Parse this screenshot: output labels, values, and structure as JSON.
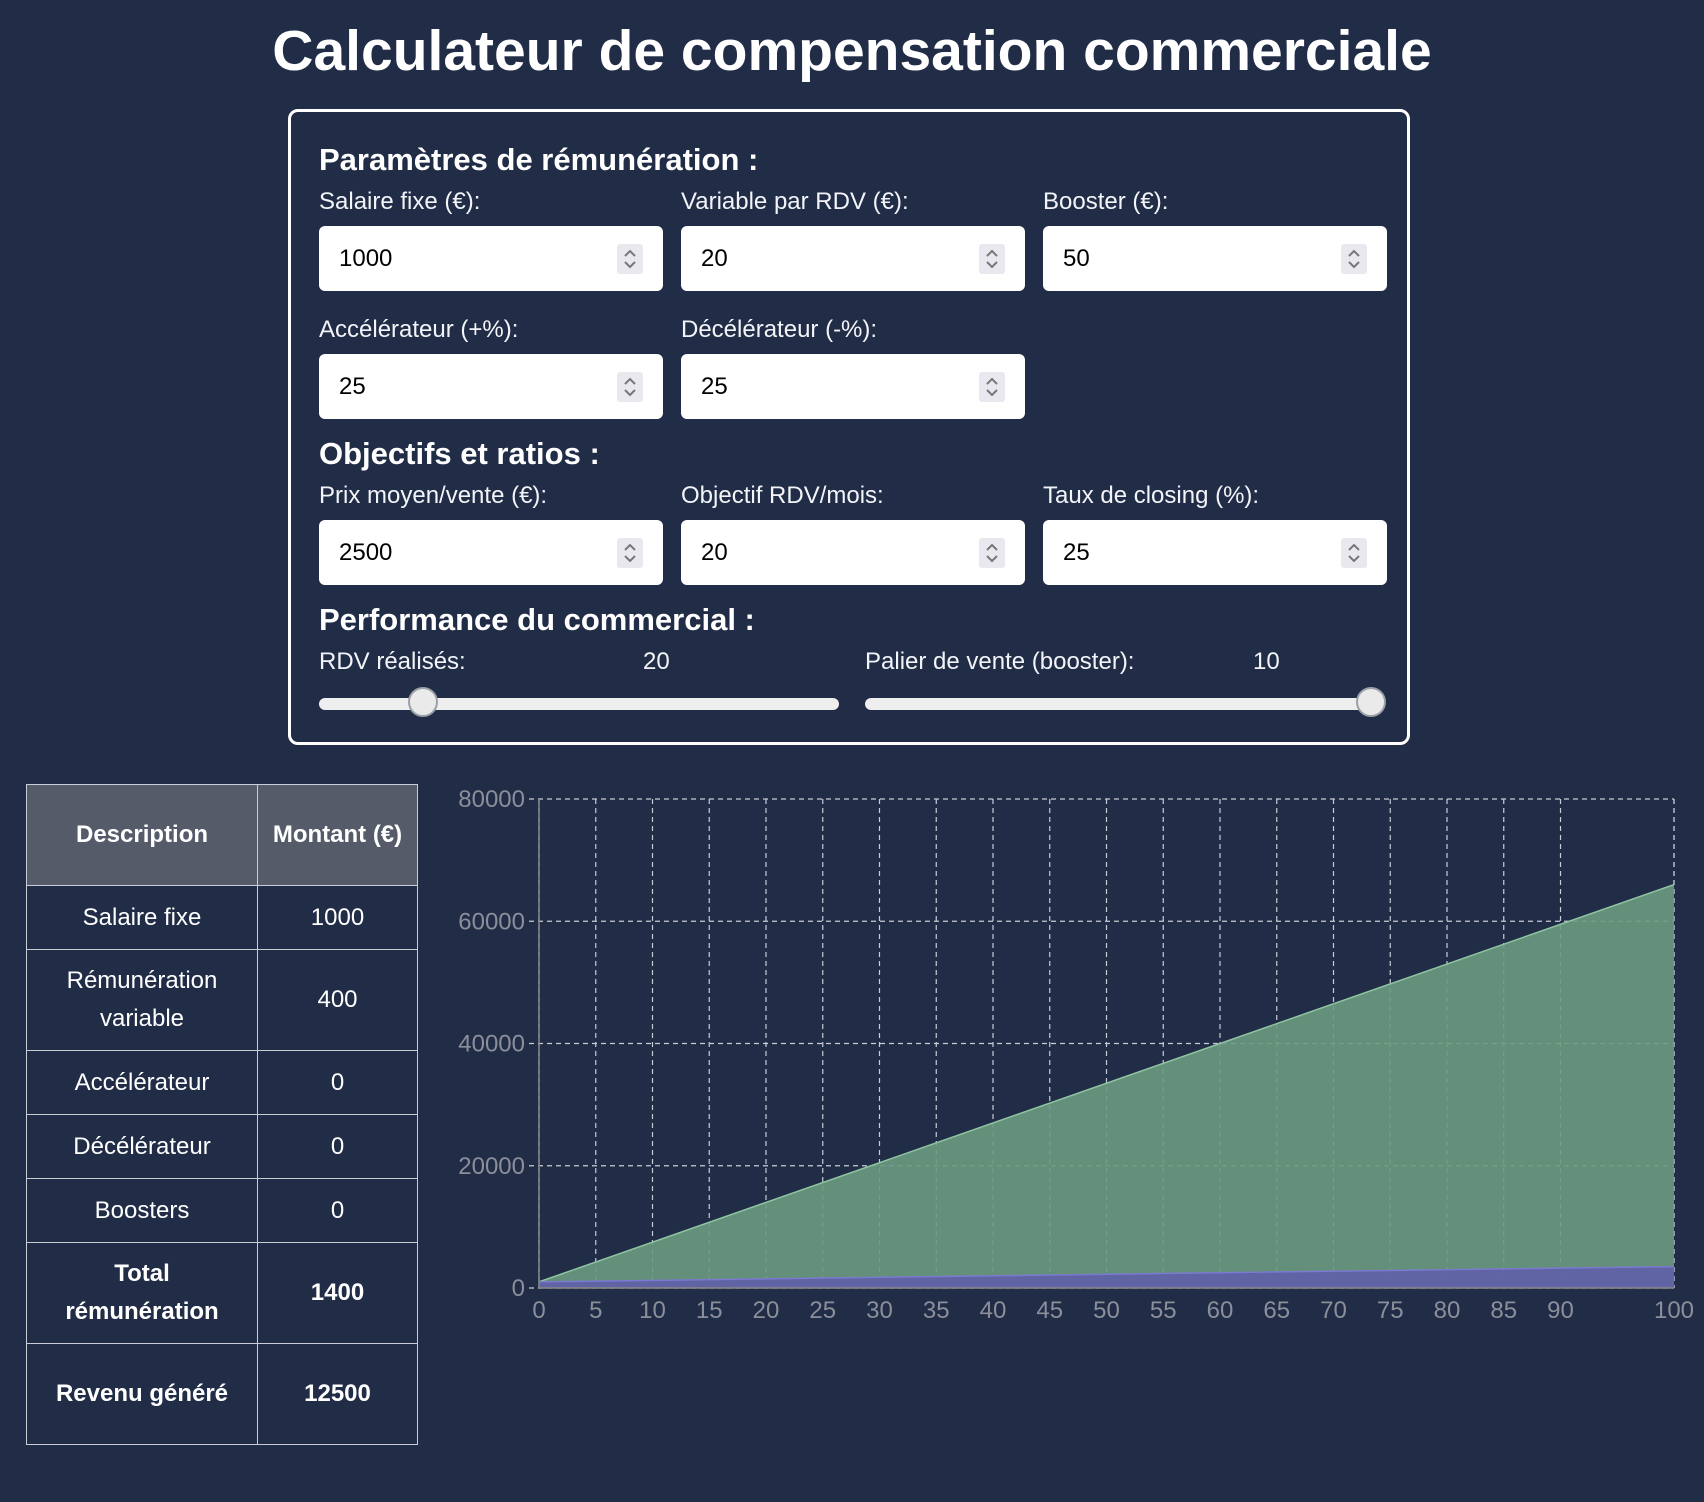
{
  "title": "Calculateur de compensation commerciale",
  "params": {
    "title": "Paramètres de rémunération :",
    "fields": [
      {
        "label": "Salaire fixe (€):",
        "value": "1000"
      },
      {
        "label": "Variable par RDV (€):",
        "value": "20"
      },
      {
        "label": "Booster (€):",
        "value": "50"
      },
      {
        "label": "Accélérateur (+%):",
        "value": "25"
      },
      {
        "label": "Décélérateur (-%):",
        "value": "25"
      }
    ]
  },
  "objectives": {
    "title": "Objectifs et ratios :",
    "fields": [
      {
        "label": "Prix moyen/vente (€):",
        "value": "2500"
      },
      {
        "label": "Objectif RDV/mois:",
        "value": "20"
      },
      {
        "label": "Taux de closing (%):",
        "value": "25"
      }
    ]
  },
  "performance": {
    "title": "Performance du commercial :",
    "rdv": {
      "label": "RDV réalisés:",
      "value": "20",
      "fraction": 0.2
    },
    "palier": {
      "label": "Palier de vente (booster):",
      "value": "10",
      "fraction": 1.0
    }
  },
  "table": {
    "headers": [
      "Description",
      "Montant (€)"
    ],
    "rows": [
      {
        "label": "Salaire fixe",
        "value": "1000"
      },
      {
        "label": "Rémunération variable",
        "value": "400"
      },
      {
        "label": "Accélérateur",
        "value": "0"
      },
      {
        "label": "Décélérateur",
        "value": "0"
      },
      {
        "label": "Boosters",
        "value": "0"
      },
      {
        "label": "Total rémunération",
        "value": "1400"
      },
      {
        "label": "Revenu généré",
        "value": "12500"
      }
    ]
  },
  "chart_data": {
    "type": "area",
    "x": [
      0,
      100
    ],
    "series": [
      {
        "values": [
          1000,
          66000
        ],
        "color": "#6b9a80"
      },
      {
        "values": [
          1000,
          3500
        ],
        "color": "#5f5fa8"
      }
    ],
    "x_ticks": [
      0,
      5,
      10,
      15,
      20,
      25,
      30,
      35,
      40,
      45,
      50,
      55,
      60,
      65,
      70,
      75,
      80,
      85,
      90,
      100
    ],
    "y_ticks": [
      0,
      20000,
      40000,
      60000,
      80000
    ],
    "xlim": [
      0,
      100
    ],
    "ylim": [
      0,
      80000
    ],
    "grid": true
  }
}
